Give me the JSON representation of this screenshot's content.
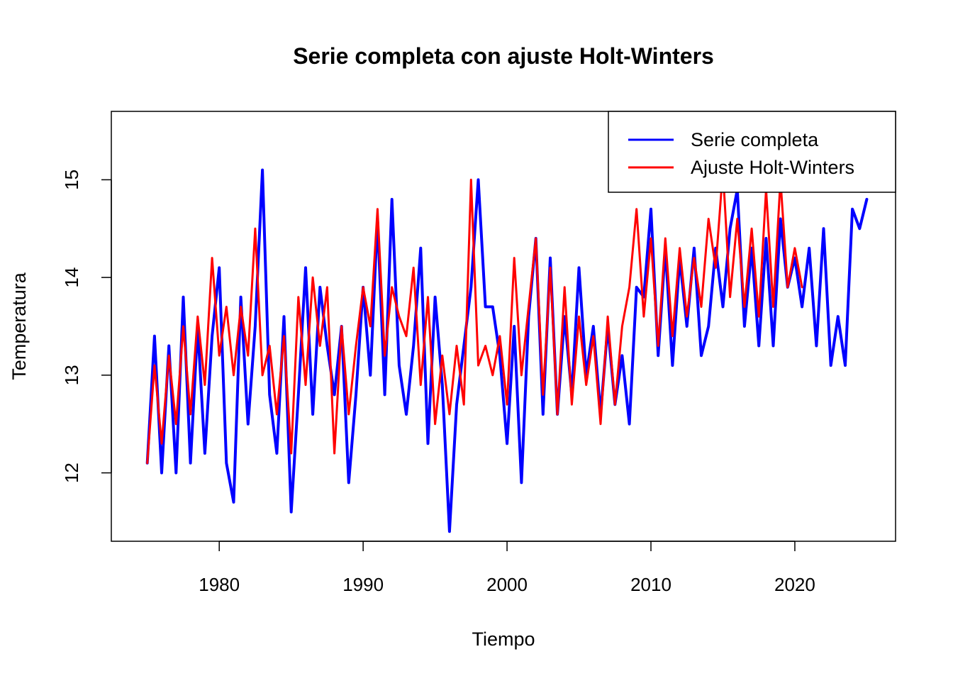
{
  "chart_data": {
    "type": "line",
    "title": "Serie completa con ajuste Holt-Winters",
    "xlabel": "Tiempo",
    "ylabel": "Temperatura",
    "xlim": [
      1972.5,
      2027
    ],
    "ylim": [
      11.3,
      15.7
    ],
    "x_ticks": [
      1980,
      1990,
      2000,
      2010,
      2020
    ],
    "x_tick_labels": [
      "1980",
      "1990",
      "2000",
      "2010",
      "2020"
    ],
    "y_ticks": [
      12,
      13,
      14,
      15
    ],
    "y_tick_labels": [
      "12",
      "13",
      "14",
      "15"
    ],
    "grid": false,
    "legend": {
      "position": "top-right",
      "entries": [
        {
          "label": "Serie completa",
          "color": "#0000FF"
        },
        {
          "label": "Ajuste Holt-Winters",
          "color": "#FF0000"
        }
      ]
    },
    "series": [
      {
        "name": "Serie completa",
        "color": "#0000FF",
        "x": [
          1975,
          1975.5,
          1976,
          1976.5,
          1977,
          1977.5,
          1978,
          1978.5,
          1979,
          1979.5,
          1980,
          1980.5,
          1981,
          1981.5,
          1982,
          1982.5,
          1983,
          1983.5,
          1984,
          1984.5,
          1985,
          1985.5,
          1986,
          1986.5,
          1987,
          1987.5,
          1988,
          1988.5,
          1989,
          1989.5,
          1990,
          1990.5,
          1991,
          1991.5,
          1992,
          1992.5,
          1993,
          1993.5,
          1994,
          1994.5,
          1995,
          1995.5,
          1996,
          1996.5,
          1997,
          1997.5,
          1998,
          1998.5,
          1999,
          1999.5,
          2000,
          2000.5,
          2001,
          2001.5,
          2002,
          2002.5,
          2003,
          2003.5,
          2004,
          2004.5,
          2005,
          2005.5,
          2006,
          2006.5,
          2007,
          2007.5,
          2008,
          2008.5,
          2009,
          2009.5,
          2010,
          2010.5,
          2011,
          2011.5,
          2012,
          2012.5,
          2013,
          2013.5,
          2014,
          2014.5,
          2015,
          2015.5,
          2016,
          2016.5,
          2017,
          2017.5,
          2018,
          2018.5,
          2019,
          2019.5,
          2020,
          2020.5,
          2021,
          2021.5,
          2022,
          2022.5,
          2023,
          2023.5,
          2024,
          2024.5,
          2025
        ],
        "values": [
          12.1,
          13.4,
          12.0,
          13.3,
          12.0,
          13.8,
          12.1,
          13.5,
          12.2,
          13.4,
          14.1,
          12.1,
          11.7,
          13.8,
          12.5,
          13.5,
          15.1,
          12.8,
          12.2,
          13.6,
          11.6,
          12.8,
          14.1,
          12.6,
          13.9,
          13.3,
          12.8,
          13.5,
          11.9,
          12.8,
          13.9,
          13.0,
          14.6,
          12.8,
          14.8,
          13.1,
          12.6,
          13.3,
          14.3,
          12.3,
          13.8,
          12.9,
          11.4,
          12.7,
          13.3,
          13.9,
          15.0,
          13.7,
          13.7,
          13.2,
          12.3,
          13.5,
          11.9,
          13.6,
          14.4,
          12.6,
          14.2,
          12.6,
          13.6,
          12.8,
          14.1,
          13.0,
          13.5,
          12.6,
          13.5,
          12.7,
          13.2,
          12.5,
          13.9,
          13.8,
          14.7,
          13.2,
          14.3,
          13.1,
          14.2,
          13.5,
          14.3,
          13.2,
          13.5,
          14.3,
          13.7,
          14.5,
          14.9,
          13.5,
          14.3,
          13.3,
          14.4,
          13.3,
          14.6,
          13.9,
          14.2,
          13.7,
          14.3,
          13.3,
          14.5,
          13.1,
          13.6,
          13.1,
          14.7,
          14.5,
          14.8
        ]
      },
      {
        "name": "Ajuste Holt-Winters",
        "color": "#FF0000",
        "x": [
          1975,
          1975.5,
          1976,
          1976.5,
          1977,
          1977.5,
          1978,
          1978.5,
          1979,
          1979.5,
          1980,
          1980.5,
          1981,
          1981.5,
          1982,
          1982.5,
          1983,
          1983.5,
          1984,
          1984.5,
          1985,
          1985.5,
          1986,
          1986.5,
          1987,
          1987.5,
          1988,
          1988.5,
          1989,
          1989.5,
          1990,
          1990.5,
          1991,
          1991.5,
          1992,
          1992.5,
          1993,
          1993.5,
          1994,
          1994.5,
          1995,
          1995.5,
          1996,
          1996.5,
          1997,
          1997.5,
          1998,
          1998.5,
          1999,
          1999.5,
          2000,
          2000.5,
          2001,
          2001.5,
          2002,
          2002.5,
          2003,
          2003.5,
          2004,
          2004.5,
          2005,
          2005.5,
          2006,
          2006.5,
          2007,
          2007.5,
          2008,
          2008.5,
          2009,
          2009.5,
          2010,
          2010.5,
          2011,
          2011.5,
          2012,
          2012.5,
          2013,
          2013.5,
          2014,
          2014.5,
          2015,
          2015.5,
          2016,
          2016.5,
          2017,
          2017.5,
          2018,
          2018.5,
          2019,
          2019.5,
          2020,
          2020.5
        ],
        "values": [
          12.1,
          13.1,
          12.3,
          13.2,
          12.5,
          13.5,
          12.6,
          13.6,
          12.9,
          14.2,
          13.2,
          13.7,
          13.0,
          13.7,
          13.2,
          14.5,
          13.0,
          13.3,
          12.6,
          13.4,
          12.2,
          13.8,
          12.9,
          14.0,
          13.3,
          13.9,
          12.2,
          13.5,
          12.6,
          13.3,
          13.9,
          13.5,
          14.7,
          13.2,
          13.9,
          13.6,
          13.4,
          14.1,
          12.9,
          13.8,
          12.5,
          13.2,
          12.6,
          13.3,
          12.7,
          15.0,
          13.1,
          13.3,
          13.0,
          13.4,
          12.7,
          14.2,
          13.0,
          13.7,
          14.4,
          12.8,
          14.1,
          12.6,
          13.9,
          12.7,
          13.6,
          12.9,
          13.4,
          12.5,
          13.6,
          12.7,
          13.5,
          13.9,
          14.7,
          13.6,
          14.4,
          13.3,
          14.4,
          13.4,
          14.3,
          13.6,
          14.2,
          13.7,
          14.6,
          14.1,
          15.1,
          13.8,
          14.6,
          13.7,
          14.5,
          13.6,
          14.9,
          13.7,
          15.0,
          13.9,
          14.3,
          13.9
        ]
      }
    ]
  }
}
